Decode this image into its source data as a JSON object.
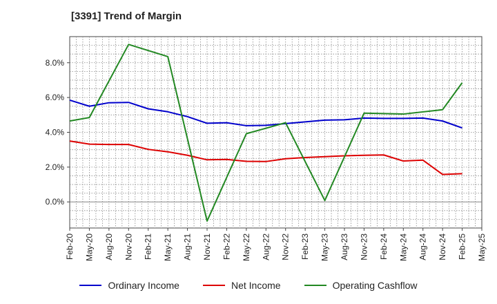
{
  "chart_data": {
    "type": "line",
    "title": "[3391]  Trend of Margin",
    "xlabel": "",
    "ylabel": "",
    "ylim": [
      -1.5,
      9.5
    ],
    "y_ticks": [
      "8.0%",
      "6.0%",
      "4.0%",
      "2.0%",
      "0.0%"
    ],
    "y_tick_values": [
      8,
      6,
      4,
      2,
      0
    ],
    "categories": [
      "Feb-20",
      "May-20",
      "Aug-20",
      "Nov-20",
      "Feb-21",
      "May-21",
      "Aug-21",
      "Nov-21",
      "Feb-22",
      "May-22",
      "Aug-22",
      "Nov-22",
      "Feb-23",
      "May-23",
      "Aug-23",
      "Nov-23",
      "Feb-24",
      "May-24",
      "Aug-24",
      "Nov-24",
      "Feb-25",
      "May-25"
    ],
    "grid": true,
    "legend_position": "bottom",
    "series": [
      {
        "name": "Ordinary Income",
        "color": "#0000cc",
        "values": [
          5.85,
          5.5,
          5.7,
          5.72,
          5.35,
          5.18,
          4.9,
          4.52,
          4.55,
          4.38,
          4.4,
          4.5,
          4.6,
          4.7,
          4.72,
          4.82,
          4.8,
          4.8,
          4.82,
          4.65,
          4.25,
          null
        ]
      },
      {
        "name": "Net Income",
        "color": "#dd0000",
        "values": [
          3.5,
          3.32,
          3.3,
          3.3,
          3.02,
          2.88,
          2.68,
          2.42,
          2.44,
          2.33,
          2.32,
          2.48,
          2.55,
          2.6,
          2.65,
          2.68,
          2.7,
          2.35,
          2.4,
          1.58,
          1.62,
          null
        ]
      },
      {
        "name": "Operating Cashflow",
        "color": "#228822",
        "values": [
          4.65,
          4.85,
          null,
          9.05,
          null,
          8.35,
          null,
          -1.1,
          null,
          3.92,
          null,
          4.55,
          null,
          0.08,
          null,
          5.1,
          null,
          5.05,
          null,
          5.3,
          6.85,
          null
        ]
      }
    ]
  }
}
